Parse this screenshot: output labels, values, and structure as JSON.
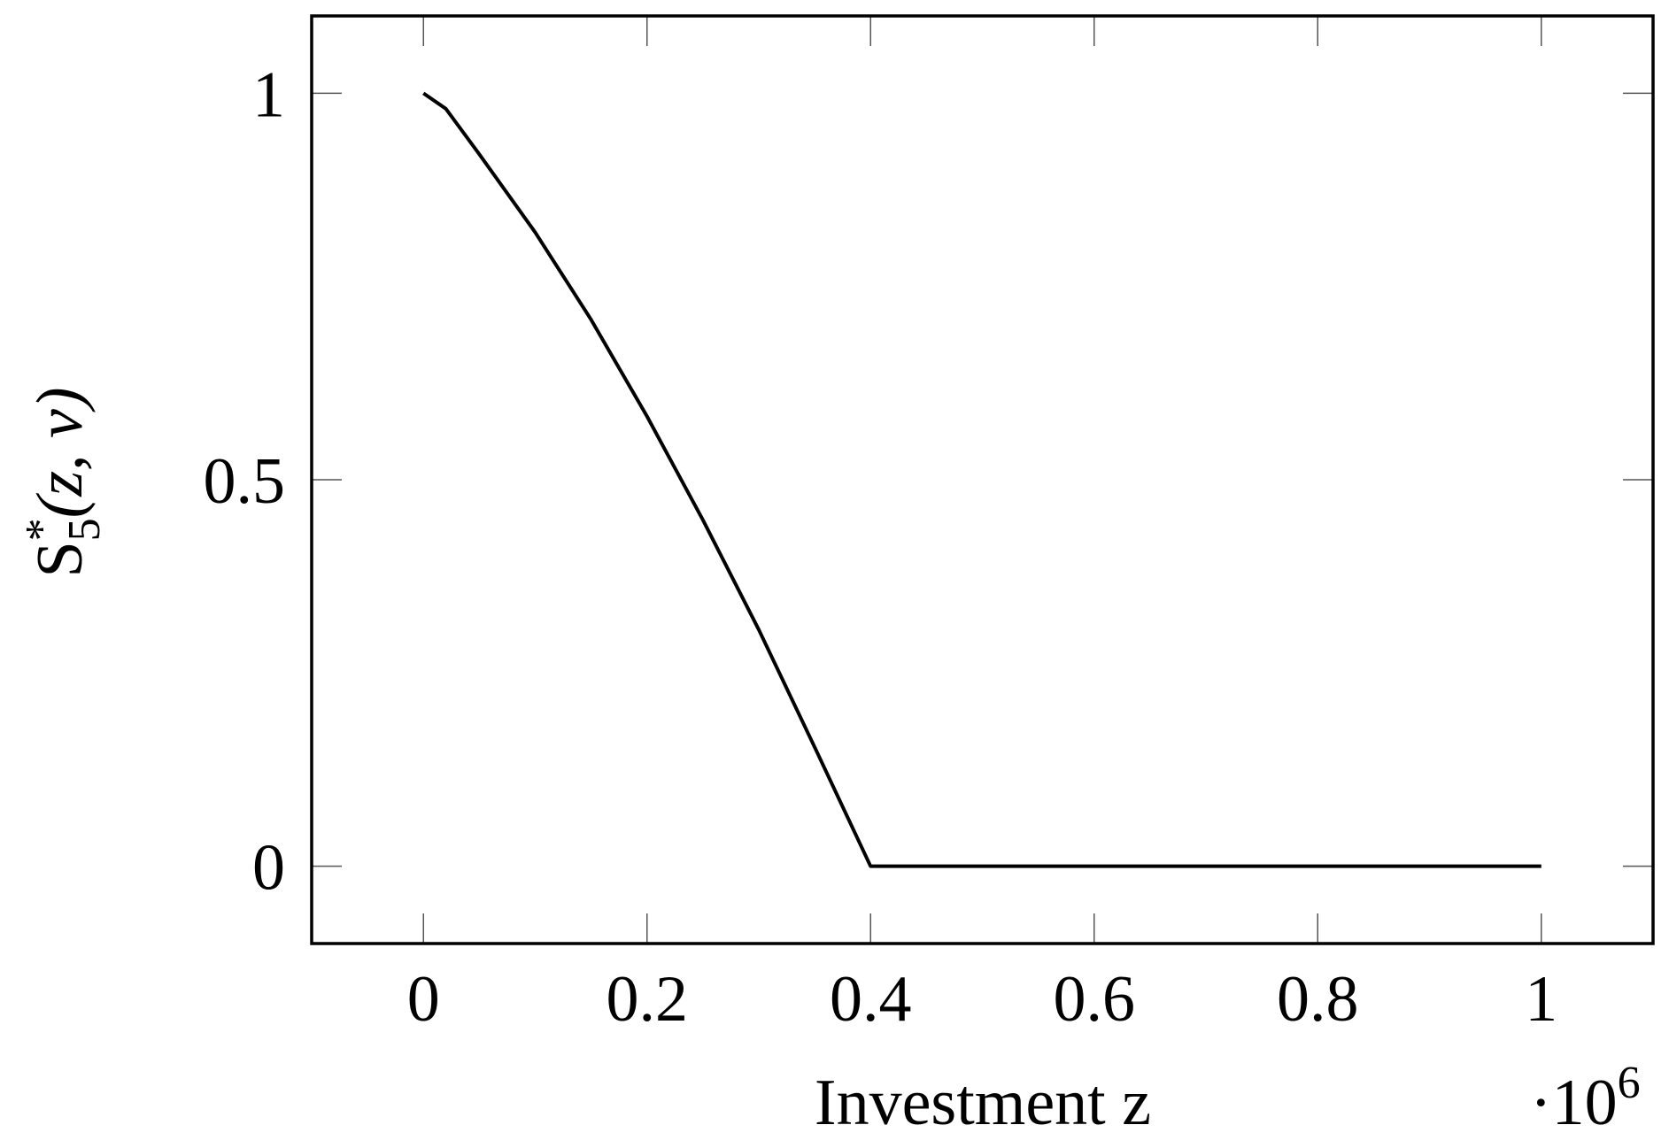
{
  "chart_data": {
    "type": "line",
    "xlabel": "Investment z",
    "ylabel": {
      "symbol": "S",
      "sup": "*",
      "sub": "5",
      "args": "(z, v)"
    },
    "x_multiplier": {
      "base": "·10",
      "exponent": "6"
    },
    "x": [
      0,
      0.02,
      0.05,
      0.1,
      0.15,
      0.2,
      0.25,
      0.3,
      0.35,
      0.4,
      0.6,
      0.8,
      1
    ],
    "series": [
      {
        "color": "#000000",
        "values": [
          1,
          0.98,
          0.921,
          0.82,
          0.707,
          0.582,
          0.448,
          0.306,
          0.154,
          0,
          0,
          0,
          0
        ]
      }
    ],
    "xlim": [
      -0.1,
      1.1
    ],
    "ylim": [
      -0.1,
      1.1
    ],
    "xticks": [
      0,
      0.2,
      0.4,
      0.6,
      0.8,
      1
    ],
    "yticks": [
      0,
      0.5,
      1
    ]
  }
}
